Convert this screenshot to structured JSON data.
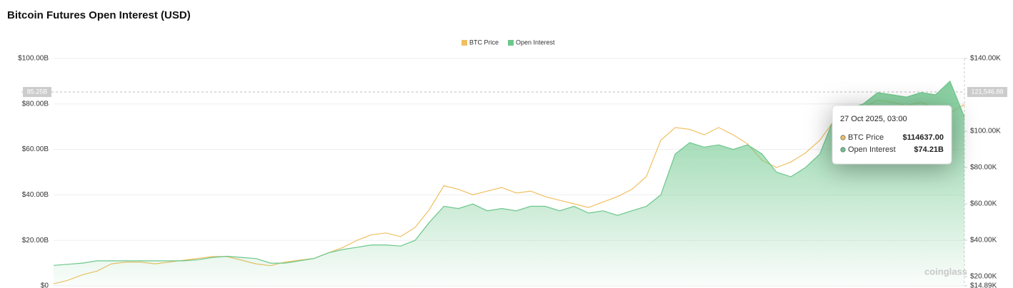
{
  "chart_data": {
    "type": "dual-axis-area-line",
    "title": "Bitcoin Futures Open Interest (USD)",
    "series": [
      {
        "name": "BTC Price",
        "color": "#f0c060",
        "axis": "y2",
        "values": [
          16000,
          18000,
          21000,
          23000,
          27000,
          28000,
          28000,
          27000,
          28000,
          29000,
          30000,
          31000,
          31000,
          29000,
          27000,
          26000,
          28000,
          29000,
          30000,
          33000,
          36000,
          40000,
          43000,
          44000,
          42000,
          47000,
          57000,
          70000,
          68000,
          65000,
          67000,
          69000,
          66000,
          67000,
          64000,
          62000,
          60000,
          58000,
          61000,
          64000,
          68000,
          75000,
          95000,
          102000,
          101000,
          98000,
          102000,
          98000,
          93000,
          84000,
          80000,
          83000,
          88000,
          95000,
          106000,
          109000,
          113000,
          117000,
          116000,
          114000,
          116000,
          112000,
          110000,
          114637
        ]
      },
      {
        "name": "Open Interest",
        "color": "#6cc78b",
        "values": [
          9,
          9.5,
          10,
          11,
          11,
          11,
          11,
          11,
          11,
          11,
          11.5,
          12.5,
          13,
          12.5,
          12,
          10,
          10,
          11,
          12,
          14.5,
          16,
          17,
          18,
          18,
          17.5,
          20,
          28,
          35,
          34,
          36,
          33,
          34,
          33,
          35,
          35,
          33,
          35,
          32,
          33,
          31,
          33,
          35,
          40,
          58,
          63,
          61,
          62,
          60,
          62,
          58,
          50,
          48,
          52,
          58,
          74,
          78,
          80,
          85,
          84,
          83,
          85,
          84,
          90,
          74.21
        ]
      }
    ],
    "ylim": [
      0,
      100
    ],
    "yticks": [
      {
        "value": 0,
        "label": "$0"
      },
      {
        "value": 20,
        "label": "$20.00B"
      },
      {
        "value": 40,
        "label": "$40.00B"
      },
      {
        "value": 60,
        "label": "$60.00B"
      },
      {
        "value": 80,
        "label": "$80.00B"
      },
      {
        "value": 100,
        "label": "$100.00B"
      }
    ],
    "y2lim": [
      14890,
      140000
    ],
    "y2ticks": [
      {
        "value": 14890,
        "label": "$14.89K"
      },
      {
        "value": 20000,
        "label": "$20.00K"
      },
      {
        "value": 40000,
        "label": "$40.00K"
      },
      {
        "value": 60000,
        "label": "$60.00K"
      },
      {
        "value": 80000,
        "label": "$80.00K"
      },
      {
        "value": 100000,
        "label": "$100.00K"
      },
      {
        "value": 140000,
        "label": "$140.00K"
      }
    ],
    "grid": true,
    "crosshair": {
      "y": {
        "value": 85.25,
        "label": "85.25B"
      },
      "y2": {
        "value": 121546.88,
        "label": "121,546.88"
      }
    },
    "tooltip": {
      "title": "27 Oct 2025, 03:00",
      "items": [
        {
          "name": "BTC Price",
          "value": 114637,
          "value_label": "$114637.00"
        },
        {
          "name": "Open Interest",
          "value": 74.21,
          "value_label": "$74.21B"
        }
      ]
    },
    "watermark": "coinglass"
  }
}
